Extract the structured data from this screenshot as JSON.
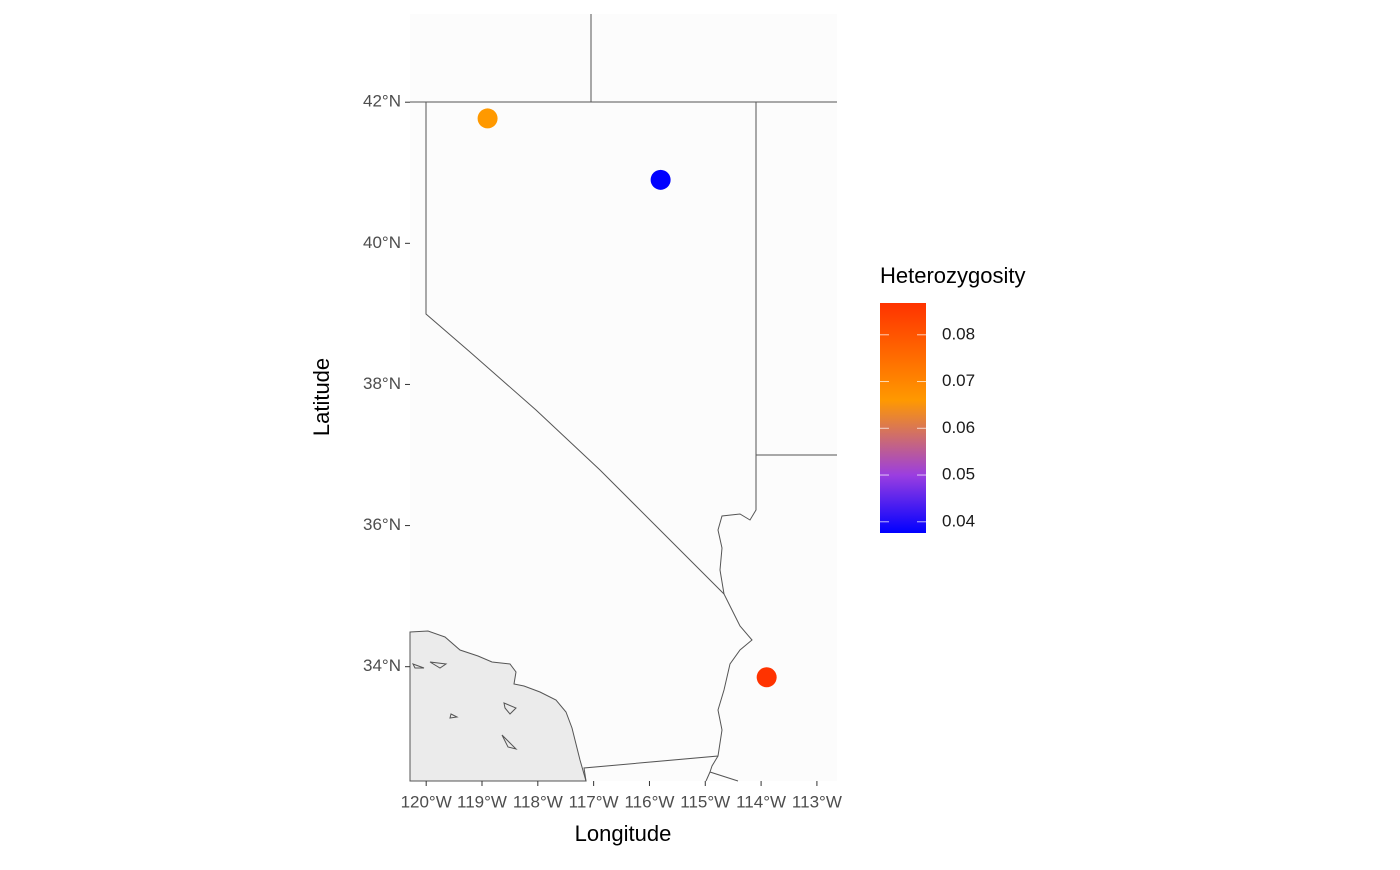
{
  "chart_data": {
    "type": "map-scatter",
    "x_label": "Longitude",
    "y_label": "Latitude",
    "xlim": [
      -120.29,
      -112.64
    ],
    "ylim": [
      32.38,
      43.25
    ],
    "xticks": [
      {
        "value": -120,
        "label": "120°W"
      },
      {
        "value": -119,
        "label": "119°W"
      },
      {
        "value": -118,
        "label": "118°W"
      },
      {
        "value": -117,
        "label": "117°W"
      },
      {
        "value": -116,
        "label": "116°W"
      },
      {
        "value": -115,
        "label": "115°W"
      },
      {
        "value": -114,
        "label": "114°W"
      },
      {
        "value": -113,
        "label": "113°W"
      }
    ],
    "yticks": [
      {
        "value": 34,
        "label": "34°N"
      },
      {
        "value": 36,
        "label": "36°N"
      },
      {
        "value": 38,
        "label": "38°N"
      },
      {
        "value": 40,
        "label": "40°N"
      },
      {
        "value": 42,
        "label": "42°N"
      }
    ],
    "x": [
      -118.9,
      -115.8,
      -113.9
    ],
    "y": [
      41.77,
      40.9,
      33.85
    ],
    "values": [
      0.066,
      0.0376,
      0.0868
    ],
    "legend_title": "Heterozygosity",
    "color_lim": [
      0.0376,
      0.0868
    ],
    "color_ticks": [
      0.04,
      0.05,
      0.06,
      0.07,
      0.08
    ],
    "color_stops": [
      {
        "value": 0.0376,
        "color": "#0000ff"
      },
      {
        "value": 0.05,
        "color": "#9b3ee0"
      },
      {
        "value": 0.066,
        "color": "#ff9900"
      },
      {
        "value": 0.0868,
        "color": "#ff3300"
      }
    ]
  }
}
